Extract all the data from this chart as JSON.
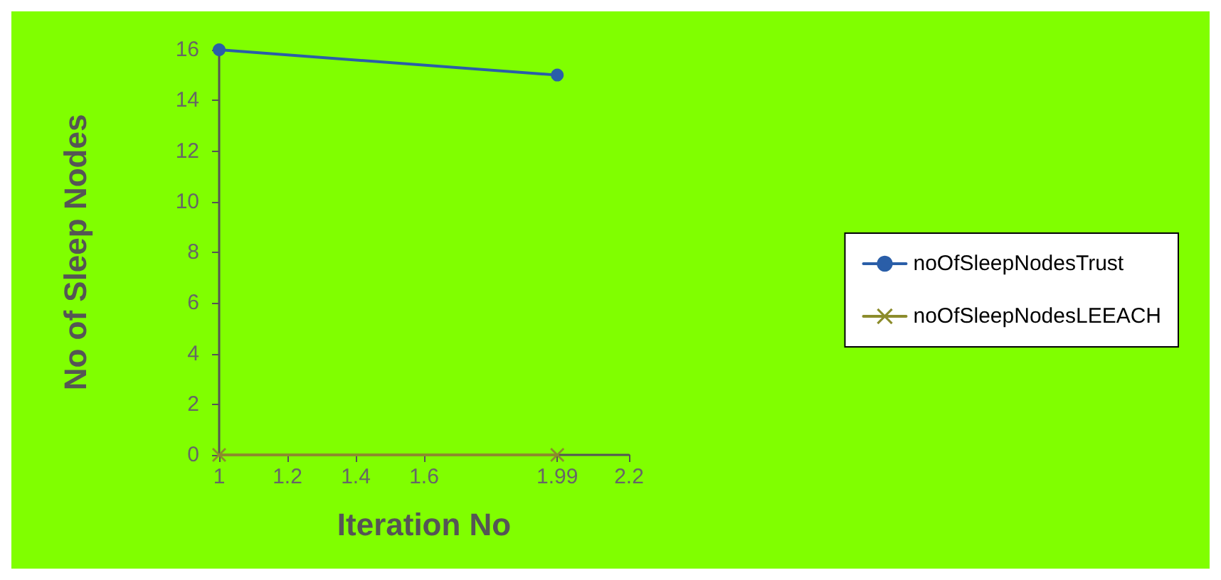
{
  "chart_data": {
    "type": "line",
    "xlabel": "Iteration No",
    "ylabel": "No of Sleep Nodes",
    "x": [
      1,
      1.99
    ],
    "series": [
      {
        "name": "noOfSleepNodesTrust",
        "color": "#2a5ea8",
        "values": [
          16,
          15
        ],
        "marker": "circle"
      },
      {
        "name": "noOfSleepNodesLEEACH",
        "color": "#8c8c2c",
        "values": [
          0,
          0
        ],
        "marker": "cross"
      }
    ],
    "xlim": [
      1,
      2.2
    ],
    "xticks": [
      1,
      1.2,
      1.4,
      1.6,
      1.99,
      2.2
    ],
    "ylim": [
      0,
      16
    ],
    "yticks": [
      0,
      2,
      4,
      6,
      8,
      10,
      12,
      14,
      16
    ],
    "grid": false,
    "legend": "right",
    "line_style": "solid"
  }
}
